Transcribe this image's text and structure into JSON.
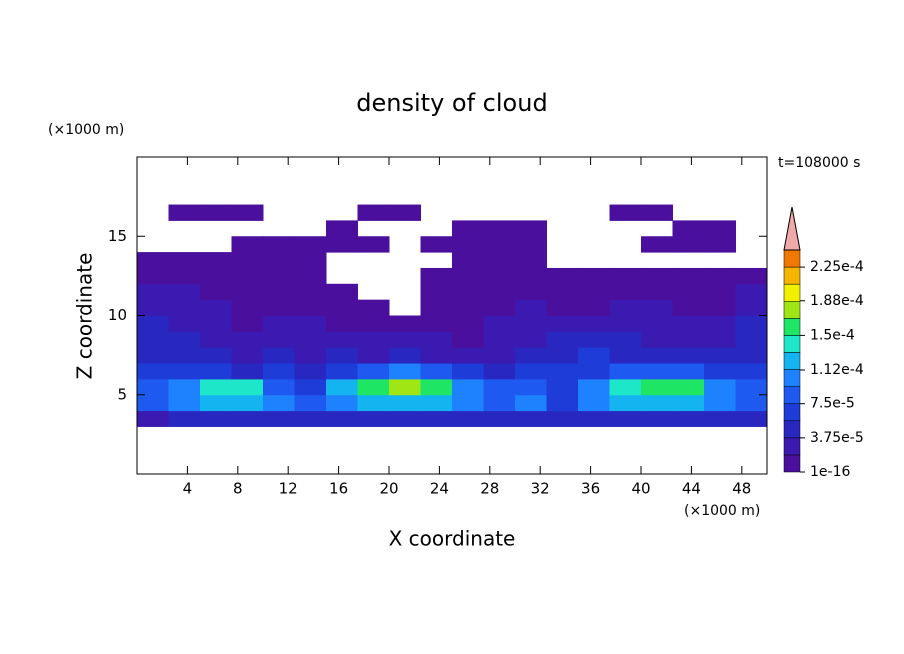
{
  "chart_data": {
    "type": "contour",
    "title": "density of cloud",
    "x_label": "X coordinate",
    "y_label": "Z coordinate",
    "x_unit": "(×1000 m)",
    "y_unit": "(×1000 m)",
    "time_label": "t=108000 s",
    "xlim": [
      0,
      50
    ],
    "ylim": [
      0,
      20
    ],
    "xticks": [
      4,
      8,
      12,
      16,
      20,
      24,
      28,
      32,
      36,
      40,
      44,
      48
    ],
    "yticks": [
      5,
      10,
      15
    ],
    "x": [
      1.25,
      3.75,
      6.25,
      8.75,
      11.25,
      13.75,
      16.25,
      18.75,
      21.25,
      23.75,
      26.25,
      28.75,
      31.25,
      33.75,
      36.25,
      38.75,
      41.25,
      43.75,
      46.25,
      48.75
    ],
    "y": [
      3.5,
      4.5,
      5.5,
      6.5,
      7.5,
      8.5,
      9.5,
      10.5,
      11.5,
      12.5,
      13.5,
      14.5,
      15.5,
      16.5
    ],
    "values": [
      [
        2.5e-05,
        4.5e-05,
        4.5e-05,
        4.5e-05,
        4.5e-05,
        4.5e-05,
        4.5e-05,
        4.5e-05,
        4.5e-05,
        4.5e-05,
        4.5e-05,
        4.5e-05,
        4.5e-05,
        4.5e-05,
        4.5e-05,
        4.5e-05,
        4.5e-05,
        4.5e-05,
        4.5e-05,
        4.5e-05
      ],
      [
        8e-05,
        0.0001,
        0.00012,
        0.00012,
        0.0001,
        8e-05,
        0.0001,
        0.00012,
        0.00012,
        0.00012,
        0.0001,
        8e-05,
        0.0001,
        6e-05,
        0.0001,
        0.00012,
        0.00012,
        0.00012,
        0.0001,
        8e-05
      ],
      [
        8e-05,
        0.0001,
        0.000135,
        0.000135,
        8e-05,
        6e-05,
        0.00012,
        0.000155,
        0.000175,
        0.000155,
        0.0001,
        8e-05,
        8e-05,
        6e-05,
        0.0001,
        0.000135,
        0.000155,
        0.000155,
        0.0001,
        8e-05
      ],
      [
        6e-05,
        6e-05,
        6e-05,
        4.5e-05,
        6e-05,
        4.5e-05,
        6e-05,
        8e-05,
        0.0001,
        8e-05,
        6e-05,
        4.5e-05,
        6e-05,
        6e-05,
        6e-05,
        8e-05,
        8e-05,
        8e-05,
        6e-05,
        6e-05
      ],
      [
        4.5e-05,
        4.5e-05,
        4.5e-05,
        2.5e-05,
        4.5e-05,
        2.5e-05,
        4.5e-05,
        2.5e-05,
        4.5e-05,
        2.5e-05,
        2.5e-05,
        2.5e-05,
        4.5e-05,
        4.5e-05,
        6e-05,
        4.5e-05,
        4.5e-05,
        4.5e-05,
        4.5e-05,
        4.5e-05
      ],
      [
        4.5e-05,
        4.5e-05,
        2.5e-05,
        2.5e-05,
        2.5e-05,
        2.5e-05,
        2.5e-05,
        2.5e-05,
        2.5e-05,
        2.5e-05,
        1e-06,
        2.5e-05,
        2.5e-05,
        4.5e-05,
        4.5e-05,
        4.5e-05,
        2.5e-05,
        2.5e-05,
        2.5e-05,
        4.5e-05
      ],
      [
        4.5e-05,
        2.5e-05,
        2.5e-05,
        1e-06,
        2.5e-05,
        2.5e-05,
        1e-06,
        1e-06,
        1e-06,
        1e-06,
        1e-06,
        2.5e-05,
        2.5e-05,
        2.5e-05,
        2.5e-05,
        2.5e-05,
        2.5e-05,
        2.5e-05,
        2.5e-05,
        4.5e-05
      ],
      [
        2.5e-05,
        2.5e-05,
        2.5e-05,
        1e-06,
        1e-06,
        1e-06,
        1e-06,
        1e-06,
        0,
        1e-06,
        1e-06,
        1e-06,
        2.5e-05,
        1e-06,
        1e-06,
        2.5e-05,
        2.5e-05,
        1e-06,
        1e-06,
        2.5e-05
      ],
      [
        2.5e-05,
        2.5e-05,
        1e-06,
        1e-06,
        1e-06,
        1e-06,
        1e-06,
        0,
        0,
        1e-06,
        1e-06,
        1e-06,
        1e-06,
        1e-06,
        1e-06,
        1e-06,
        1e-06,
        1e-06,
        1e-06,
        2.5e-05
      ],
      [
        1e-06,
        1e-06,
        1e-06,
        1e-06,
        1e-06,
        1e-06,
        0,
        0,
        0,
        1e-06,
        1e-06,
        1e-06,
        1e-06,
        1e-06,
        1e-06,
        1e-06,
        1e-06,
        1e-06,
        1e-06,
        1e-06
      ],
      [
        1e-06,
        1e-06,
        1e-06,
        1e-06,
        1e-06,
        1e-06,
        0,
        0,
        0,
        0,
        1e-06,
        1e-06,
        1e-06,
        0,
        0,
        0,
        0,
        0,
        0,
        0
      ],
      [
        0,
        0,
        0,
        1e-06,
        1e-06,
        1e-06,
        1e-06,
        1e-06,
        0,
        1e-06,
        1e-06,
        1e-06,
        1e-06,
        0,
        0,
        0,
        1e-06,
        1e-06,
        1e-06,
        0
      ],
      [
        0,
        0,
        0,
        0,
        0,
        0,
        1e-06,
        0,
        0,
        0,
        1e-06,
        1e-06,
        1e-06,
        0,
        0,
        0,
        0,
        1e-06,
        1e-06,
        0
      ],
      [
        0,
        1e-06,
        1e-06,
        1e-06,
        0,
        0,
        0,
        1e-06,
        1e-06,
        0,
        0,
        0,
        0,
        0,
        0,
        1e-06,
        1e-06,
        0,
        0,
        0
      ]
    ],
    "levels": [
      1e-16,
      1.875e-05,
      3.75e-05,
      5.625e-05,
      7.5e-05,
      9.375e-05,
      0.0001125,
      0.00013125,
      0.00015,
      0.00016875,
      0.0001875,
      0.00020625,
      0.000225,
      0.00024375
    ],
    "colors": [
      "#4b0f9e",
      "#3a1ab0",
      "#2828c0",
      "#1e3cd8",
      "#1e5af0",
      "#1e82ff",
      "#14b4f0",
      "#1ee6c8",
      "#1ee664",
      "#a0e614",
      "#f0f000",
      "#f5b400",
      "#f07800",
      "#e63200"
    ],
    "extend_color": "#f0a8a8",
    "colorbar_ticks": [
      {
        "value": 1e-16,
        "label": "1e-16"
      },
      {
        "value": 3.75e-05,
        "label": "3.75e-5"
      },
      {
        "value": 7.5e-05,
        "label": "7.5e-5"
      },
      {
        "value": 0.000112,
        "label": "1.12e-4"
      },
      {
        "value": 0.00015,
        "label": "1.5e-4"
      },
      {
        "value": 0.000188,
        "label": "1.88e-4"
      },
      {
        "value": 0.000225,
        "label": "2.25e-4"
      }
    ]
  }
}
